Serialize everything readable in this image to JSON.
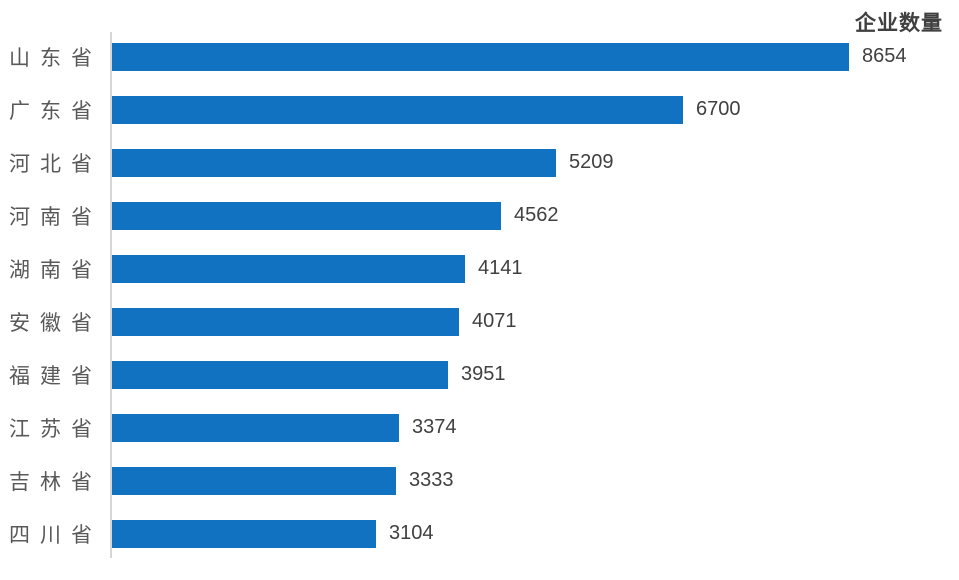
{
  "chart_data": {
    "type": "bar",
    "orientation": "horizontal",
    "title": "企业数量",
    "categories": [
      "山东省",
      "广东省",
      "河北省",
      "河南省",
      "湖南省",
      "安徽省",
      "福建省",
      "江苏省",
      "吉林省",
      "四川省"
    ],
    "values": [
      8654,
      6700,
      5209,
      4562,
      4141,
      4071,
      3951,
      3374,
      3333,
      3104
    ],
    "xlim": [
      0,
      8654
    ],
    "grid": false,
    "legend_position": "none",
    "title_position": "top-right",
    "colors": {
      "bar": "#1272C2",
      "axis_line": "#D6D6D6",
      "category_label": "#595959",
      "value_label": "#404040",
      "title": "#404040",
      "background": "#FFFFFF"
    }
  }
}
